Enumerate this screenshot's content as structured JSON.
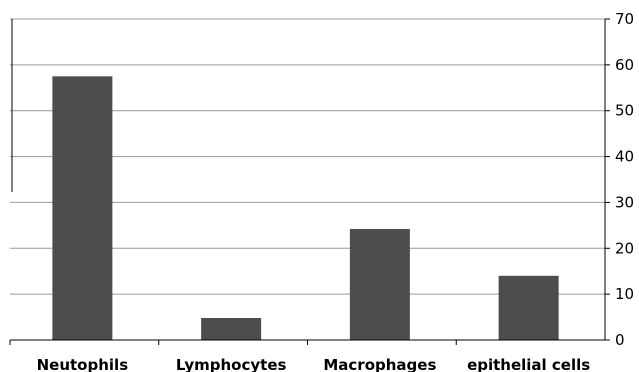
{
  "chart_data": {
    "type": "bar",
    "categories": [
      "Neutophils",
      "Lymphocytes",
      "Macrophages",
      "epithelial cells"
    ],
    "values": [
      57.5,
      4.8,
      24.2,
      14.0
    ],
    "yticks": [
      0,
      10,
      20,
      30,
      40,
      50,
      60,
      70
    ],
    "ylim": [
      0,
      70
    ],
    "y_axis_position": "right",
    "grid": true,
    "bar_color": "#4d4d4d",
    "title": "",
    "xlabel": "",
    "ylabel": ""
  }
}
